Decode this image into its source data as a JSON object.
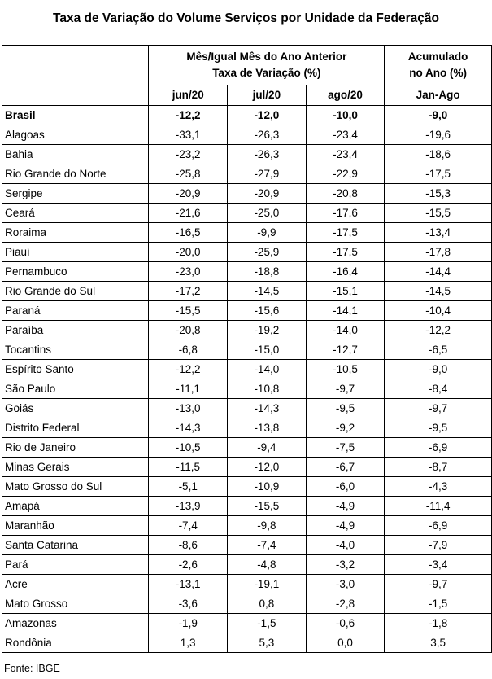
{
  "title": "Taxa de Variação do Volume Serviços por Unidade da Federação",
  "header": {
    "group_line1": "Mês/Igual Mês do Ano Anterior",
    "group_line2": "Taxa de Variação (%)",
    "acum_line1": "Acumulado",
    "acum_line2": "no Ano (%)",
    "columns": [
      "jun/20",
      "jul/20",
      "ago/20",
      "Jan-Ago"
    ]
  },
  "rows": [
    {
      "uf": "Brasil",
      "jun": "-12,2",
      "jul": "-12,0",
      "ago": "-10,0",
      "acum": "-9,0"
    },
    {
      "uf": "Alagoas",
      "jun": "-33,1",
      "jul": "-26,3",
      "ago": "-23,4",
      "acum": "-19,6"
    },
    {
      "uf": "Bahia",
      "jun": "-23,2",
      "jul": "-26,3",
      "ago": "-23,4",
      "acum": "-18,6"
    },
    {
      "uf": "Rio Grande do Norte",
      "jun": "-25,8",
      "jul": "-27,9",
      "ago": "-22,9",
      "acum": "-17,5"
    },
    {
      "uf": "Sergipe",
      "jun": "-20,9",
      "jul": "-20,9",
      "ago": "-20,8",
      "acum": "-15,3"
    },
    {
      "uf": "Ceará",
      "jun": "-21,6",
      "jul": "-25,0",
      "ago": "-17,6",
      "acum": "-15,5"
    },
    {
      "uf": "Roraima",
      "jun": "-16,5",
      "jul": "-9,9",
      "ago": "-17,5",
      "acum": "-13,4"
    },
    {
      "uf": "Piauí",
      "jun": "-20,0",
      "jul": "-25,9",
      "ago": "-17,5",
      "acum": "-17,8"
    },
    {
      "uf": "Pernambuco",
      "jun": "-23,0",
      "jul": "-18,8",
      "ago": "-16,4",
      "acum": "-14,4"
    },
    {
      "uf": "Rio Grande do Sul",
      "jun": "-17,2",
      "jul": "-14,5",
      "ago": "-15,1",
      "acum": "-14,5"
    },
    {
      "uf": "Paraná",
      "jun": "-15,5",
      "jul": "-15,6",
      "ago": "-14,1",
      "acum": "-10,4"
    },
    {
      "uf": "Paraíba",
      "jun": "-20,8",
      "jul": "-19,2",
      "ago": "-14,0",
      "acum": "-12,2"
    },
    {
      "uf": "Tocantins",
      "jun": "-6,8",
      "jul": "-15,0",
      "ago": "-12,7",
      "acum": "-6,5"
    },
    {
      "uf": "Espírito Santo",
      "jun": "-12,2",
      "jul": "-14,0",
      "ago": "-10,5",
      "acum": "-9,0"
    },
    {
      "uf": "São Paulo",
      "jun": "-11,1",
      "jul": "-10,8",
      "ago": "-9,7",
      "acum": "-8,4"
    },
    {
      "uf": "Goiás",
      "jun": "-13,0",
      "jul": "-14,3",
      "ago": "-9,5",
      "acum": "-9,7"
    },
    {
      "uf": "Distrito Federal",
      "jun": "-14,3",
      "jul": "-13,8",
      "ago": "-9,2",
      "acum": "-9,5"
    },
    {
      "uf": "Rio de Janeiro",
      "jun": "-10,5",
      "jul": "-9,4",
      "ago": "-7,5",
      "acum": "-6,9"
    },
    {
      "uf": "Minas Gerais",
      "jun": "-11,5",
      "jul": "-12,0",
      "ago": "-6,7",
      "acum": "-8,7"
    },
    {
      "uf": "Mato Grosso do Sul",
      "jun": "-5,1",
      "jul": "-10,9",
      "ago": "-6,0",
      "acum": "-4,3"
    },
    {
      "uf": "Amapá",
      "jun": "-13,9",
      "jul": "-15,5",
      "ago": "-4,9",
      "acum": "-11,4"
    },
    {
      "uf": "Maranhão",
      "jun": "-7,4",
      "jul": "-9,8",
      "ago": "-4,9",
      "acum": "-6,9"
    },
    {
      "uf": "Santa Catarina",
      "jun": "-8,6",
      "jul": "-7,4",
      "ago": "-4,0",
      "acum": "-7,9"
    },
    {
      "uf": "Pará",
      "jun": "-2,6",
      "jul": "-4,8",
      "ago": "-3,2",
      "acum": "-3,4"
    },
    {
      "uf": "Acre",
      "jun": "-13,1",
      "jul": "-19,1",
      "ago": "-3,0",
      "acum": "-9,7"
    },
    {
      "uf": "Mato Grosso",
      "jun": "-3,6",
      "jul": "0,8",
      "ago": "-2,8",
      "acum": "-1,5"
    },
    {
      "uf": "Amazonas",
      "jun": "-1,9",
      "jul": "-1,5",
      "ago": "-0,6",
      "acum": "-1,8"
    },
    {
      "uf": "Rondônia",
      "jun": "1,3",
      "jul": "5,3",
      "ago": "0,0",
      "acum": "3,5"
    }
  ],
  "footer": "Fonte: IBGE"
}
